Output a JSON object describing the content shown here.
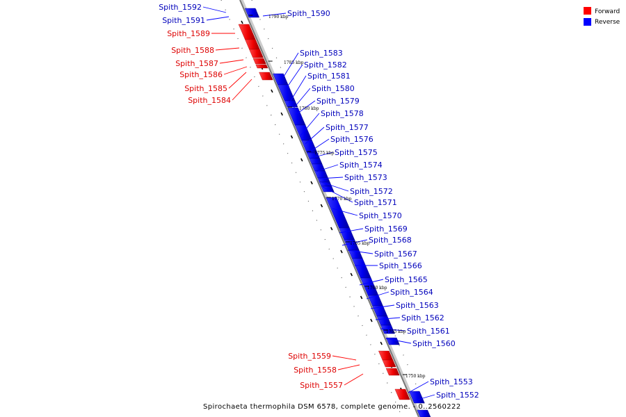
{
  "legend": {
    "items": [
      {
        "label": "Forward",
        "color": "#ff0000"
      },
      {
        "label": "Reverse",
        "color": "#0000ff"
      }
    ]
  },
  "caption": "Spirochaeta thermophila DSM 6578, complete genome. - 0..2560222",
  "colors": {
    "forward": "#ff0000",
    "reverse": "#0000ff",
    "backbone": "#888888"
  },
  "kbp_ticks": [
    "1790 kbp",
    "1785 kbp",
    "1780 kbp",
    "1775 kbp",
    "1770 kbp",
    "1765 kbp",
    "1760 kbp",
    "1755 kbp",
    "1750 kbp"
  ],
  "genes": [
    {
      "label": "Spith_1592",
      "strand": "reverse"
    },
    {
      "label": "Spith_1591",
      "strand": "reverse"
    },
    {
      "label": "Spith_1590",
      "strand": "reverse"
    },
    {
      "label": "Spith_1589",
      "strand": "forward"
    },
    {
      "label": "Spith_1588",
      "strand": "forward"
    },
    {
      "label": "Spith_1587",
      "strand": "forward"
    },
    {
      "label": "Spith_1586",
      "strand": "forward"
    },
    {
      "label": "Spith_1585",
      "strand": "forward"
    },
    {
      "label": "Spith_1584",
      "strand": "forward"
    },
    {
      "label": "Spith_1583",
      "strand": "reverse"
    },
    {
      "label": "Spith_1582",
      "strand": "reverse"
    },
    {
      "label": "Spith_1581",
      "strand": "reverse"
    },
    {
      "label": "Spith_1580",
      "strand": "reverse"
    },
    {
      "label": "Spith_1579",
      "strand": "reverse"
    },
    {
      "label": "Spith_1578",
      "strand": "reverse"
    },
    {
      "label": "Spith_1577",
      "strand": "reverse"
    },
    {
      "label": "Spith_1576",
      "strand": "reverse"
    },
    {
      "label": "Spith_1575",
      "strand": "reverse"
    },
    {
      "label": "Spith_1574",
      "strand": "reverse"
    },
    {
      "label": "Spith_1573",
      "strand": "reverse"
    },
    {
      "label": "Spith_1572",
      "strand": "reverse"
    },
    {
      "label": "Spith_1571",
      "strand": "reverse"
    },
    {
      "label": "Spith_1570",
      "strand": "reverse"
    },
    {
      "label": "Spith_1569",
      "strand": "reverse"
    },
    {
      "label": "Spith_1568",
      "strand": "reverse"
    },
    {
      "label": "Spith_1567",
      "strand": "reverse"
    },
    {
      "label": "Spith_1566",
      "strand": "reverse"
    },
    {
      "label": "Spith_1565",
      "strand": "reverse"
    },
    {
      "label": "Spith_1564",
      "strand": "reverse"
    },
    {
      "label": "Spith_1563",
      "strand": "reverse"
    },
    {
      "label": "Spith_1562",
      "strand": "reverse"
    },
    {
      "label": "Spith_1561",
      "strand": "reverse"
    },
    {
      "label": "Spith_1560",
      "strand": "reverse"
    },
    {
      "label": "Spith_1559",
      "strand": "forward"
    },
    {
      "label": "Spith_1558",
      "strand": "forward"
    },
    {
      "label": "Spith_1557",
      "strand": "forward"
    },
    {
      "label": "Spith_1553",
      "strand": "reverse"
    },
    {
      "label": "Spith_1552",
      "strand": "reverse"
    }
  ]
}
